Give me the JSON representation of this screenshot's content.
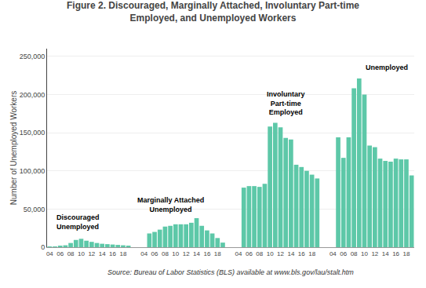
{
  "chart_data": {
    "type": "bar",
    "title": "Figure 2. Discouraged, Marginally Attached, Involuntary Part-time\nEmployed, and Unemployed Workers",
    "ylabel": "Number of Unemployed Workers",
    "source": "Source: Bureau of Labor Statistics (BLS) available at www.bls.gov/lau/stalt.htm",
    "color": "#5DC8A8",
    "categories": [
      "04",
      null,
      "06",
      null,
      "08",
      null,
      "10",
      null,
      "12",
      null,
      "14",
      null,
      "16",
      null,
      "18",
      null,
      null,
      null,
      "04",
      null,
      "06",
      null,
      "08",
      null,
      "10",
      null,
      "12",
      null,
      "14",
      null,
      "16",
      null,
      "18",
      null,
      null,
      null,
      "04",
      null,
      "06",
      null,
      "08",
      null,
      "10",
      null,
      "12",
      null,
      "14",
      null,
      "16",
      null,
      "18",
      null,
      null,
      null,
      "04",
      null,
      "06",
      null,
      "08",
      null,
      "10",
      null,
      "12",
      null,
      "14",
      null,
      "16",
      null,
      "18",
      null
    ],
    "values": [
      500,
      800,
      1200,
      2500,
      5500,
      9500,
      11000,
      8500,
      7000,
      5500,
      4500,
      4000,
      3500,
      3000,
      2500,
      2000,
      null,
      null,
      0,
      18000,
      20000,
      23000,
      27000,
      28000,
      30000,
      30000,
      30000,
      32000,
      38000,
      28000,
      22000,
      18000,
      12000,
      6000,
      null,
      null,
      0,
      78000,
      80000,
      80000,
      79000,
      83000,
      158000,
      163000,
      157000,
      143000,
      141000,
      108000,
      105000,
      100000,
      95000,
      90000,
      null,
      null,
      0,
      144000,
      117000,
      144000,
      208000,
      221000,
      200000,
      133000,
      131000,
      116000,
      113000,
      112000,
      116000,
      115000,
      115000,
      94000
    ],
    "ylim": [
      0,
      260000
    ],
    "yticks": [
      0,
      {
        "value": 50000,
        "label": "50,000"
      },
      {
        "value": 100000,
        "label": "100,000"
      },
      {
        "value": 150000,
        "label": "150,000"
      },
      {
        "value": 200000,
        "label": "200,000"
      },
      {
        "value": 250000,
        "label": "250,000"
      }
    ],
    "grid": true,
    "annotations": [
      {
        "text": "Discouraged\nUnemployed",
        "x": 1,
        "y": 20000,
        "align": "left"
      },
      {
        "text": "Marginally Attached\nUnemployed",
        "x": 23,
        "y": 42000,
        "align": "center"
      },
      {
        "text": "Involuntary\nPart-time\nEmployed",
        "x": 45,
        "y": 170000,
        "align": "center"
      },
      {
        "text": "Unemployed",
        "x": 60,
        "y": 228000,
        "align": "left"
      }
    ]
  }
}
